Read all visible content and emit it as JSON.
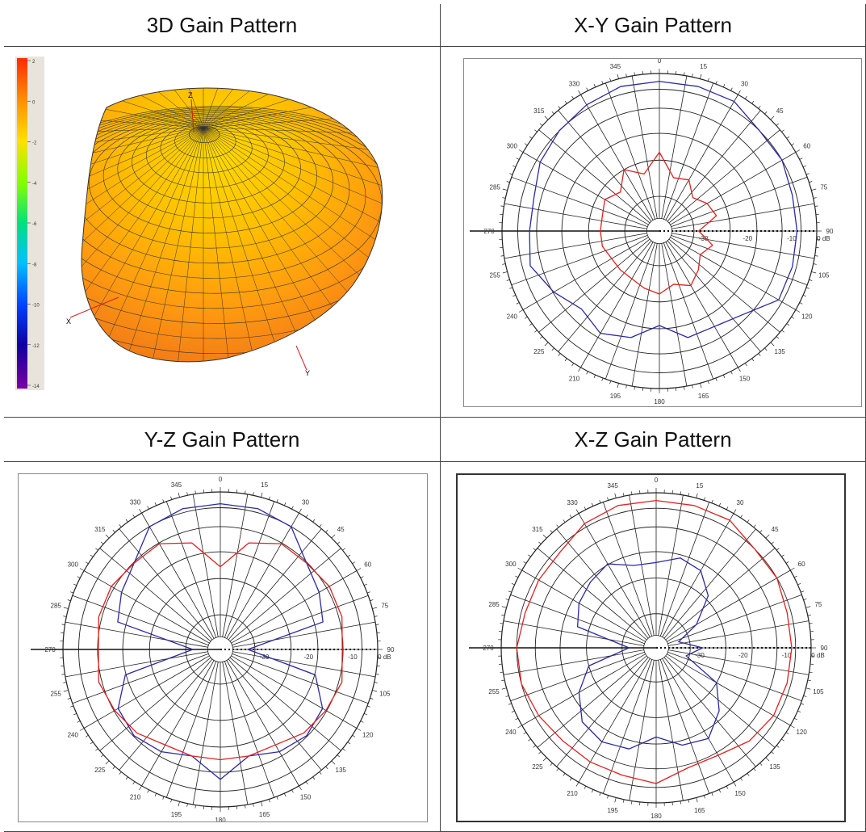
{
  "panels": {
    "p3d": {
      "title": "3D Gain Pattern"
    },
    "xy": {
      "title": "X-Y Gain Pattern"
    },
    "yz": {
      "title": "Y-Z Gain Pattern"
    },
    "xz": {
      "title": "X-Z Gain Pattern"
    }
  },
  "colorbar": {
    "ticks": [
      "2",
      "0",
      "-2",
      "-4",
      "-6",
      "-8",
      "-10",
      "-12",
      "-14"
    ],
    "colors": [
      "#ff2a00",
      "#ff7a00",
      "#ffd000",
      "#e8ff00",
      "#7cff00",
      "#00e060",
      "#00d0ff",
      "#0070ff",
      "#0010c0",
      "#3a0090",
      "#7a00a0"
    ]
  },
  "axes_3d": {
    "x": "X",
    "y": "Y",
    "z": "Z"
  },
  "polar_common": {
    "angle_labels": [
      "0",
      "15",
      "30",
      "45",
      "60",
      "75",
      "90",
      "105",
      "120",
      "135",
      "150",
      "165",
      "180",
      "195",
      "210",
      "225",
      "240",
      "255",
      "270",
      "285",
      "300",
      "315",
      "330",
      "345"
    ],
    "radial_labels": [
      "-30",
      "-20",
      "-10",
      "0 dB"
    ]
  },
  "chart_data": [
    {
      "type": "polar",
      "title": "X-Y Gain Pattern",
      "r_range_db": [
        -40,
        0
      ],
      "angle_step_deg": 15,
      "series": [
        {
          "color": "#2a2aa0",
          "angles": [
            0,
            15,
            30,
            45,
            60,
            75,
            90,
            105,
            120,
            135,
            150,
            165,
            180,
            195,
            210,
            225,
            240,
            255,
            270,
            285,
            300,
            315,
            330,
            345
          ],
          "gain_db": [
            -2,
            -2,
            -2,
            -4,
            -4,
            -5,
            -5,
            -5,
            -5,
            -10,
            -12,
            -12,
            -16,
            -12,
            -10,
            -12,
            -9,
            -6,
            -7,
            -7,
            -5,
            -4,
            -3,
            -2
          ]
        },
        {
          "color": "#e02020",
          "angles": [
            0,
            15,
            30,
            45,
            60,
            75,
            90,
            105,
            120,
            135,
            150,
            165,
            180,
            195,
            210,
            225,
            240,
            255,
            270,
            285,
            300,
            315,
            330,
            345
          ],
          "gain_db": [
            -20,
            -26,
            -25,
            -28,
            -26,
            -25,
            -30,
            -26,
            -28,
            -26,
            -24,
            -26,
            -24,
            -25,
            -26,
            -26,
            -26,
            -25,
            -25,
            -25,
            -24,
            -26,
            -22,
            -25
          ]
        }
      ]
    },
    {
      "type": "polar",
      "title": "Y-Z Gain Pattern",
      "r_range_db": [
        -40,
        0
      ],
      "angle_step_deg": 15,
      "series": [
        {
          "color": "#2a2aa0",
          "angles": [
            0,
            15,
            30,
            45,
            60,
            75,
            90,
            105,
            120,
            135,
            150,
            165,
            180,
            195,
            210,
            225,
            240,
            255,
            270,
            285,
            300,
            315,
            330,
            345
          ],
          "gain_db": [
            -3,
            -3,
            -4,
            -9,
            -11,
            -13,
            -33,
            -15,
            -10,
            -9,
            -10,
            -12,
            -7,
            -12,
            -10,
            -9,
            -10,
            -15,
            -33,
            -13,
            -11,
            -9,
            -4,
            -3
          ]
        },
        {
          "color": "#e02020",
          "angles": [
            0,
            15,
            30,
            45,
            60,
            75,
            90,
            105,
            120,
            135,
            150,
            165,
            180,
            195,
            210,
            225,
            240,
            255,
            270,
            285,
            300,
            315,
            330,
            345
          ],
          "gain_db": [
            -19,
            -12,
            -9,
            -9,
            -8,
            -8,
            -9,
            -8,
            -9,
            -10,
            -12,
            -12,
            -12,
            -12,
            -12,
            -10,
            -9,
            -8,
            -9,
            -8,
            -8,
            -9,
            -9,
            -12
          ]
        }
      ]
    },
    {
      "type": "polar",
      "title": "X-Z Gain Pattern",
      "r_range_db": [
        -40,
        0
      ],
      "angle_step_deg": 15,
      "series": [
        {
          "color": "#e02020",
          "angles": [
            0,
            15,
            30,
            45,
            60,
            75,
            90,
            105,
            120,
            135,
            150,
            165,
            180,
            195,
            210,
            225,
            240,
            255,
            270,
            285,
            300,
            315,
            330,
            345
          ],
          "gain_db": [
            -2,
            -2,
            -2,
            -4,
            -4,
            -5,
            -5,
            -5,
            -5,
            -6,
            -8,
            -8,
            -5,
            -6,
            -6,
            -6,
            -5,
            -4,
            -4,
            -5,
            -5,
            -5,
            -3,
            -2
          ]
        },
        {
          "color": "#2a2aa0",
          "angles": [
            0,
            15,
            30,
            45,
            60,
            75,
            90,
            105,
            120,
            135,
            150,
            165,
            180,
            195,
            210,
            225,
            240,
            255,
            270,
            285,
            300,
            315,
            330,
            345
          ],
          "gain_db": [
            -18,
            -16,
            -17,
            -21,
            -28,
            -34,
            -28,
            -32,
            -22,
            -17,
            -13,
            -14,
            -17,
            -13,
            -12,
            -13,
            -17,
            -22,
            -33,
            -19,
            -17,
            -16,
            -15,
            -18
          ]
        }
      ]
    }
  ]
}
